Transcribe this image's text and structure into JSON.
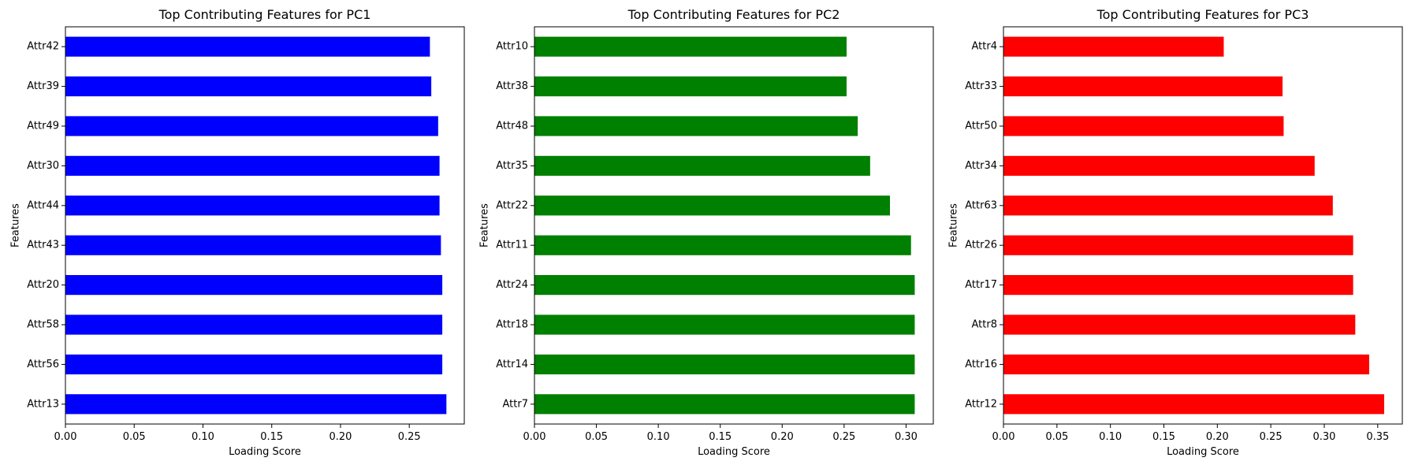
{
  "charts": [
    {
      "type": "bar",
      "orientation": "horizontal",
      "title": "Top Contributing Features for PC1",
      "xlabel": "Loading Score",
      "ylabel": "Features",
      "color": "#0000ff",
      "xlim": [
        0,
        0.29
      ],
      "xticks": [
        "0.00",
        "0.05",
        "0.10",
        "0.15",
        "0.20",
        "0.25"
      ],
      "categories": [
        "Attr42",
        "Attr39",
        "Attr49",
        "Attr30",
        "Attr44",
        "Attr43",
        "Attr20",
        "Attr58",
        "Attr56",
        "Attr13"
      ],
      "values": [
        0.265,
        0.266,
        0.271,
        0.272,
        0.272,
        0.273,
        0.274,
        0.274,
        0.274,
        0.277
      ]
    },
    {
      "type": "bar",
      "orientation": "horizontal",
      "title": "Top Contributing Features for PC2",
      "xlabel": "Loading Score",
      "ylabel": "Features",
      "color": "#008000",
      "xlim": [
        0,
        0.322
      ],
      "xticks": [
        "0.00",
        "0.05",
        "0.10",
        "0.15",
        "0.20",
        "0.25",
        "0.30"
      ],
      "categories": [
        "Attr10",
        "Attr38",
        "Attr48",
        "Attr35",
        "Attr22",
        "Attr11",
        "Attr24",
        "Attr18",
        "Attr14",
        "Attr7"
      ],
      "values": [
        0.252,
        0.252,
        0.261,
        0.271,
        0.287,
        0.304,
        0.307,
        0.307,
        0.307,
        0.307
      ]
    },
    {
      "type": "bar",
      "orientation": "horizontal",
      "title": "Top Contributing Features for PC3",
      "xlabel": "Loading Score",
      "ylabel": "Features",
      "color": "#ff0000",
      "xlim": [
        0,
        0.373
      ],
      "xticks": [
        "0.00",
        "0.05",
        "0.10",
        "0.15",
        "0.20",
        "0.25",
        "0.30",
        "0.35"
      ],
      "categories": [
        "Attr4",
        "Attr33",
        "Attr50",
        "Attr34",
        "Attr63",
        "Attr26",
        "Attr17",
        "Attr8",
        "Attr16",
        "Attr12"
      ],
      "values": [
        0.206,
        0.261,
        0.262,
        0.291,
        0.308,
        0.327,
        0.327,
        0.329,
        0.342,
        0.356
      ]
    }
  ]
}
